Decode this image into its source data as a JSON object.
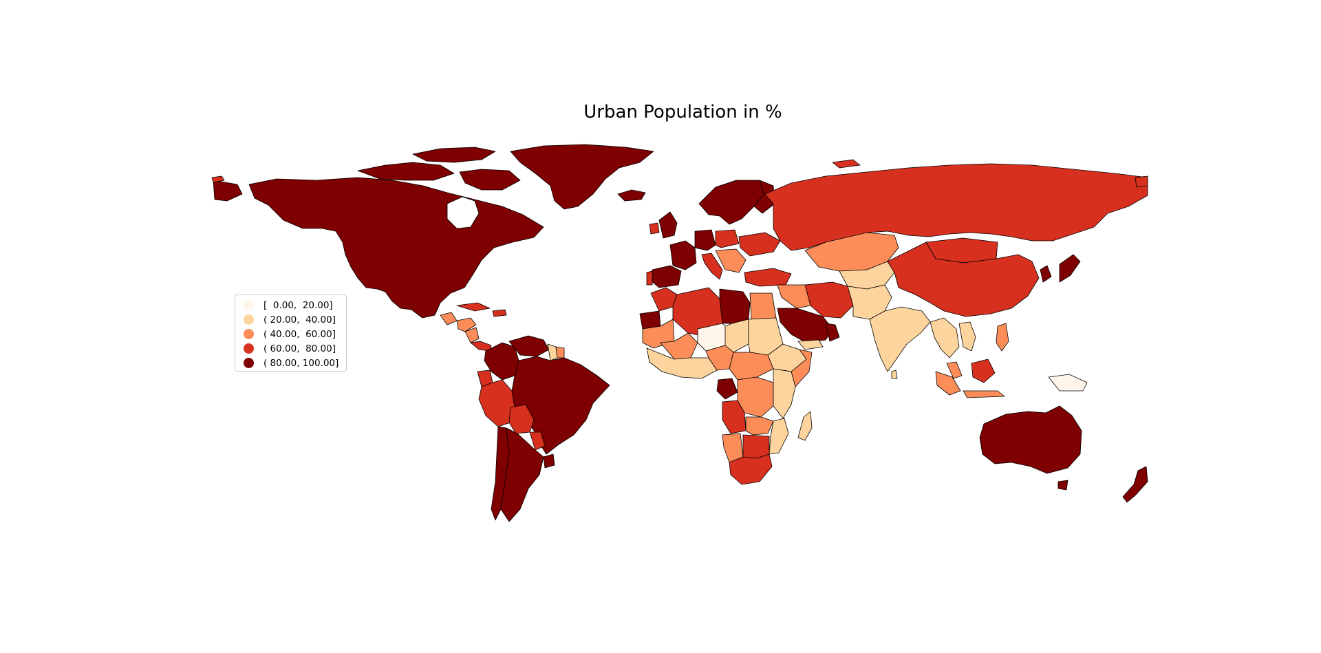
{
  "title": "Urban Population in %",
  "legend": {
    "items": [
      {
        "label": "[  0.00,  20.00]",
        "color": "#fff5eb"
      },
      {
        "label": "( 20.00,  40.00]",
        "color": "#fdd49e"
      },
      {
        "label": "( 40.00,  60.00]",
        "color": "#fc8d59"
      },
      {
        "label": "( 60.00,  80.00]",
        "color": "#d7301f"
      },
      {
        "label": "( 80.00, 100.00]",
        "color": "#7f0000"
      }
    ]
  },
  "colors": {
    "class_0": "#fff5eb",
    "class_1": "#fdd49e",
    "class_2": "#fc8d59",
    "class_3": "#d7301f",
    "class_4": "#7f0000",
    "border": "#000000",
    "background": "#ffffff"
  }
}
